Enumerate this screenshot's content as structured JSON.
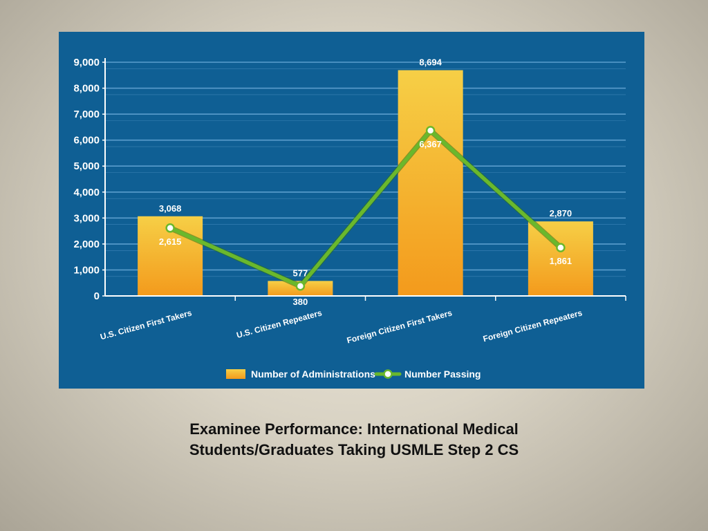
{
  "colors": {
    "panel_background": "#0f5f94",
    "gridline": "#5b9ecd",
    "bar_top": "#f6cf46",
    "bar_bottom": "#f39a1c",
    "line": "#6ab82c",
    "marker_fill": "#ffffff"
  },
  "caption": {
    "line1": "Examinee Performance: International Medical",
    "line2": "Students/Graduates Taking USMLE Step 2 CS"
  },
  "chart_data": {
    "type": "bar",
    "title": "",
    "xlabel": "",
    "ylabel": "",
    "ylim": [
      0,
      9000
    ],
    "yticks": [
      "0",
      "1,000",
      "2,000",
      "3,000",
      "4,000",
      "5,000",
      "6,000",
      "7,000",
      "8,000",
      "9,000"
    ],
    "grid": true,
    "legend_position": "bottom",
    "categories": [
      "U.S. Citizen First Takers",
      "U.S. Citizen Repeaters",
      "Foreign Citizen First Takers",
      "Foreign Citizen Repeaters"
    ],
    "series": [
      {
        "name": "Number of Administrations",
        "type": "bar",
        "values": [
          3068,
          577,
          8694,
          2870
        ],
        "labels": [
          "3,068",
          "577",
          "8,694",
          "2,870"
        ]
      },
      {
        "name": "Number Passing",
        "type": "line",
        "values": [
          2615,
          380,
          6367,
          1861
        ],
        "labels": [
          "2,615",
          "380",
          "6,367",
          "1,861"
        ]
      }
    ]
  }
}
